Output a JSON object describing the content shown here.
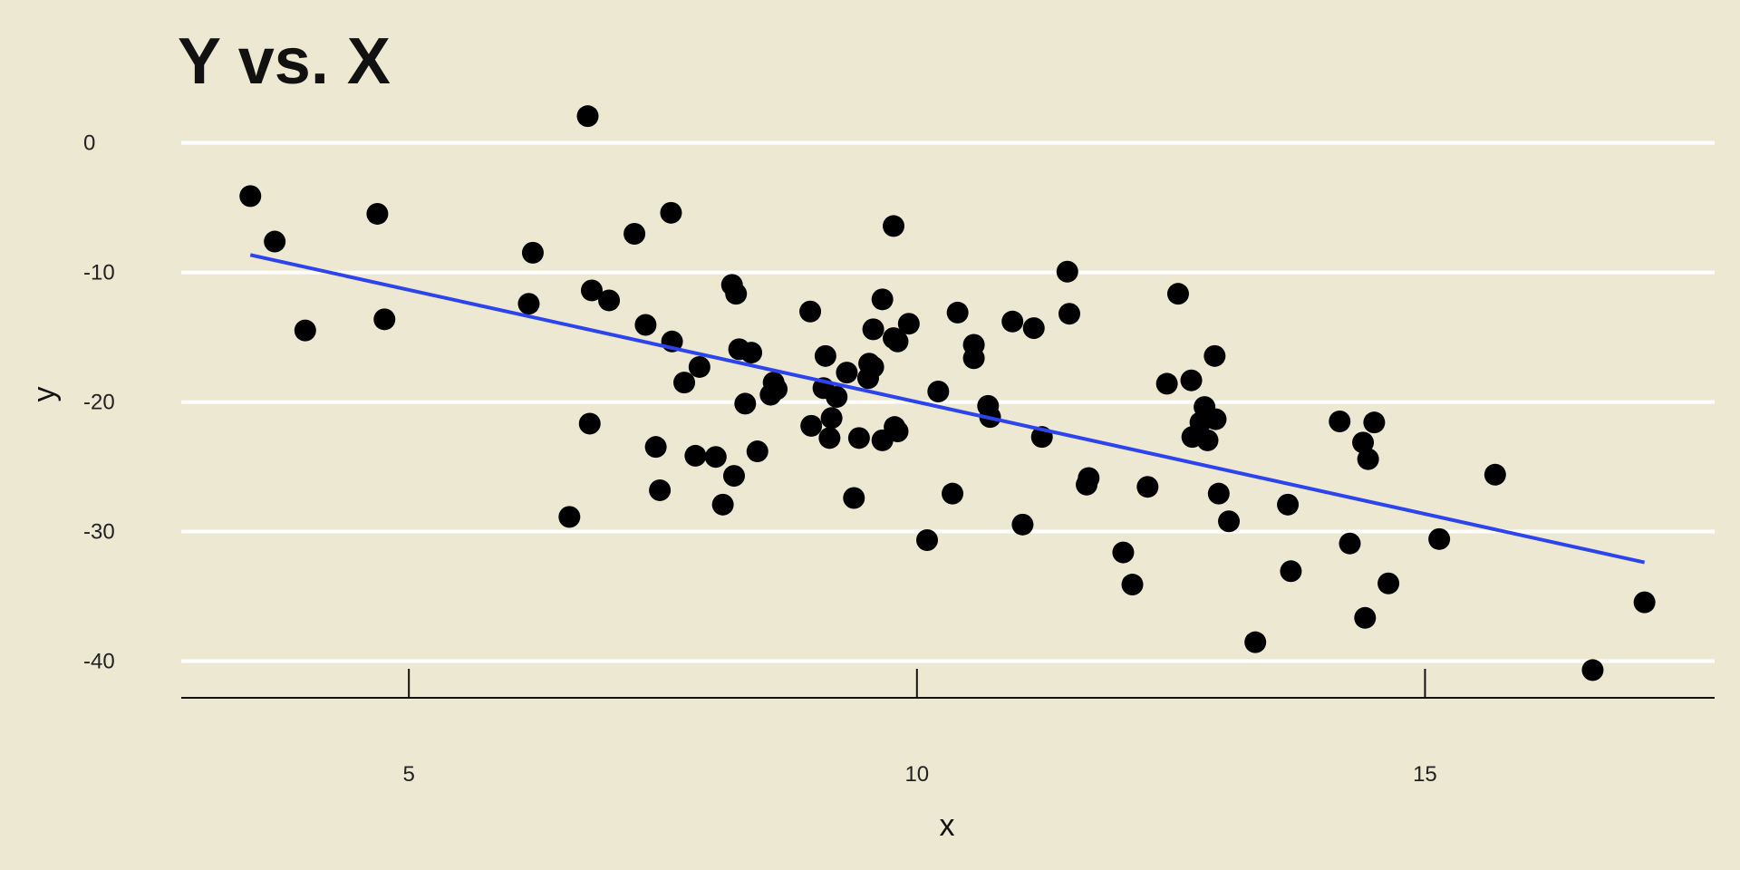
{
  "chart_data": {
    "type": "scatter",
    "title": "Y vs. X",
    "x_label": "x",
    "y_label": "y",
    "x": [
      3.44,
      3.68,
      3.98,
      4.69,
      4.76,
      6.18,
      6.22,
      6.58,
      6.76,
      6.78,
      6.8,
      6.97,
      7.22,
      7.33,
      7.43,
      7.47,
      7.58,
      7.59,
      7.71,
      7.82,
      7.86,
      8.02,
      8.09,
      8.18,
      8.2,
      8.22,
      8.25,
      8.31,
      8.37,
      8.43,
      8.56,
      8.59,
      8.62,
      8.95,
      8.96,
      9.08,
      9.1,
      9.14,
      9.16,
      9.21,
      9.31,
      9.38,
      9.43,
      9.52,
      9.53,
      9.57,
      9.57,
      9.66,
      9.66,
      9.77,
      9.77,
      9.78,
      9.81,
      9.81,
      9.92,
      10.1,
      10.21,
      10.35,
      10.4,
      10.56,
      10.56,
      10.7,
      10.72,
      10.94,
      11.04,
      11.15,
      11.23,
      11.48,
      11.5,
      11.67,
      11.69,
      12.03,
      12.12,
      12.27,
      12.46,
      12.57,
      12.7,
      12.71,
      12.79,
      12.83,
      12.86,
      12.93,
      12.94,
      12.97,
      13.07,
      13.33,
      13.65,
      13.68,
      14.16,
      14.26,
      14.39,
      14.41,
      14.44,
      14.5,
      14.64,
      15.14,
      15.69,
      16.65,
      17.16
    ],
    "y": [
      -4.11,
      -7.62,
      -14.48,
      -5.48,
      -13.62,
      -12.42,
      -8.48,
      -28.87,
      2.06,
      -21.67,
      -11.39,
      -12.16,
      -7.02,
      -14.05,
      -23.47,
      -26.81,
      -5.4,
      -15.33,
      -18.5,
      -24.15,
      -17.3,
      -24.24,
      -27.92,
      -10.96,
      -25.7,
      -11.65,
      -15.93,
      -20.13,
      -16.19,
      -23.81,
      -19.44,
      -18.5,
      -19.01,
      -13.02,
      -21.84,
      -18.93,
      -16.45,
      -22.78,
      -21.24,
      -19.61,
      -17.73,
      -27.41,
      -22.78,
      -18.16,
      -17.04,
      -14.39,
      -17.3,
      -12.08,
      -22.96,
      -6.42,
      -15.07,
      -21.93,
      -15.33,
      -22.27,
      -13.96,
      -30.66,
      -19.19,
      -27.07,
      -13.1,
      -15.59,
      -16.62,
      -20.3,
      -21.16,
      -13.79,
      -29.46,
      -14.3,
      -22.7,
      -9.94,
      -13.19,
      -26.38,
      -25.87,
      -31.61,
      -34.09,
      -26.55,
      -18.59,
      -11.65,
      -18.33,
      -22.7,
      -21.58,
      -20.39,
      -22.96,
      -16.45,
      -21.33,
      -27.07,
      -29.21,
      -38.54,
      -27.92,
      -33.06,
      -21.5,
      -30.92,
      -23.13,
      -36.66,
      -24.41,
      -21.58,
      -34.0,
      -30.58,
      -25.61,
      -40.69,
      -35.46
    ],
    "color": "#000000",
    "trend": {
      "x": [
        3.44,
        17.16
      ],
      "y": [
        -8.65,
        -32.38
      ],
      "color": "#2b44ee"
    },
    "xlim": [
      2.76,
      17.85
    ],
    "ylim": [
      -42.83,
      2.91
    ],
    "xticks": [
      5,
      10,
      15
    ],
    "yticks": [
      0,
      -10,
      -20,
      -30,
      -40
    ],
    "grid": true
  }
}
